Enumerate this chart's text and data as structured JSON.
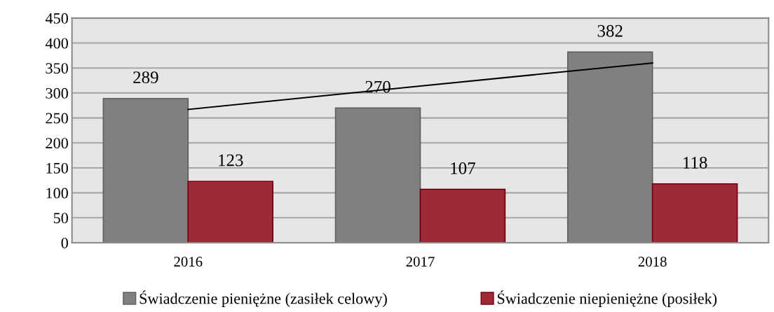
{
  "chart_data": {
    "type": "bar",
    "categories": [
      "2016",
      "2017",
      "2018"
    ],
    "series": [
      {
        "name": "Świadczenie pieniężne (zasiłek celowy)",
        "color": "#808080",
        "values": [
          289,
          270,
          382
        ],
        "value_labels": [
          "289",
          "270",
          "382"
        ]
      },
      {
        "name": "Świadczenie niepieniężne (posiłek)",
        "color": "#9e2a37",
        "values": [
          123,
          107,
          118
        ],
        "value_labels": [
          "123",
          "107",
          "118"
        ]
      },
      {
        "type": "line",
        "color": "#000000",
        "values": [
          267,
          314,
          360
        ]
      }
    ],
    "ylim": [
      0,
      450
    ],
    "yticks": [
      0,
      50,
      100,
      150,
      200,
      250,
      300,
      350,
      400,
      450
    ],
    "grid": "y",
    "legend": "bottom",
    "marker": "none",
    "line_style": "solid"
  }
}
